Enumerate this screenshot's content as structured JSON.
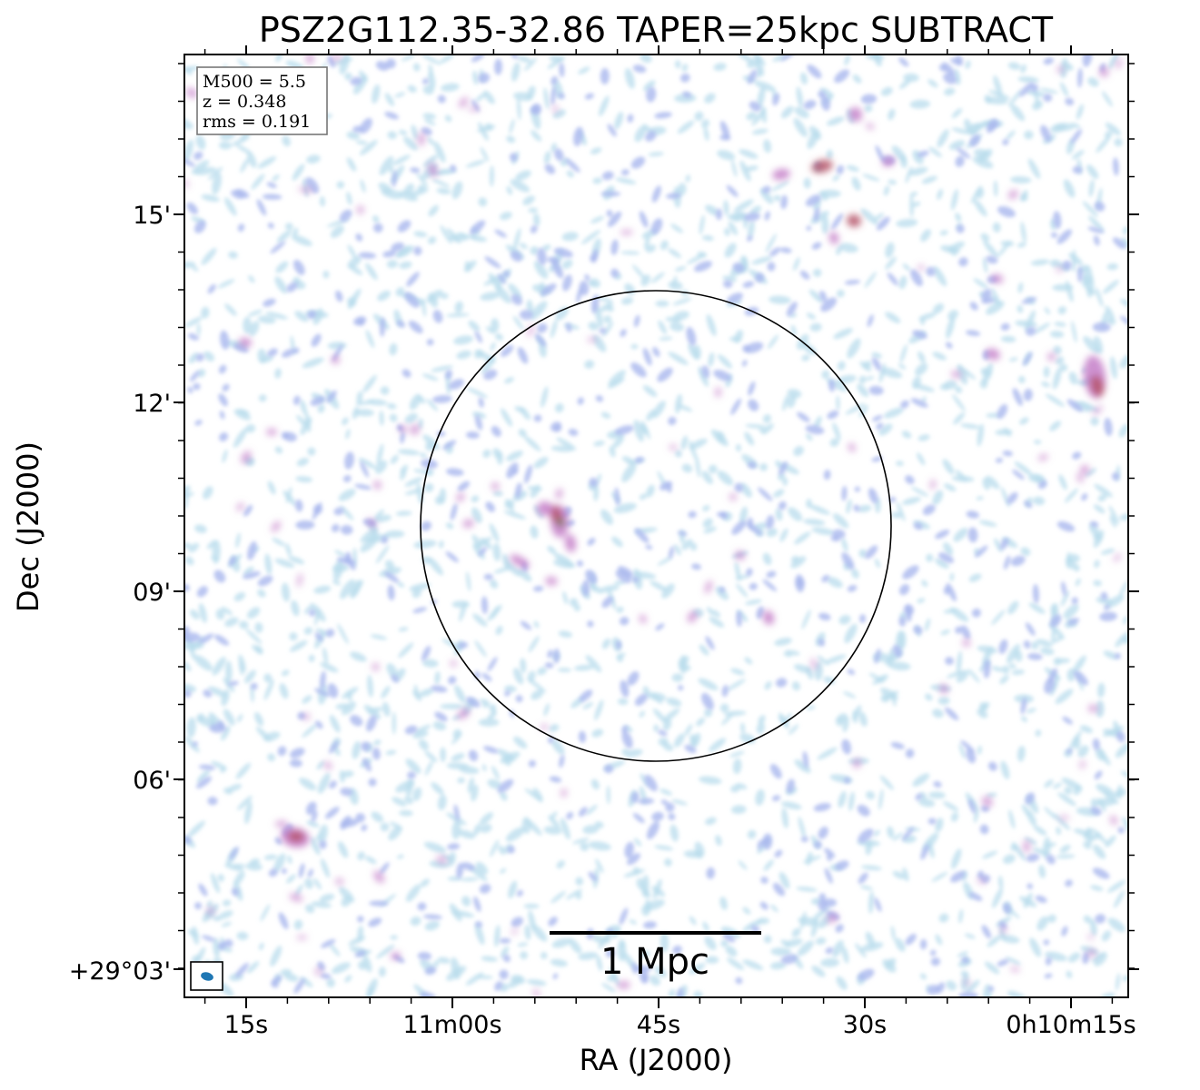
{
  "title": "PSZ2G112.35-32.86 TAPER=25kpc SUBTRACT",
  "axes": {
    "xlabel": "RA (J2000)",
    "ylabel": "Dec (J2000)",
    "x_ticks": [
      "15s",
      "11m00s",
      "45s",
      "30s",
      "0h10m15s"
    ],
    "y_ticks": [
      "15'",
      "12'",
      "09'",
      "06'",
      "+29°03'"
    ]
  },
  "info_box": {
    "mass": "M500 = 5.5",
    "redshift": "z = 0.348",
    "rms": "rms = 0.191"
  },
  "scale_bar": {
    "label": "1 Mpc"
  },
  "colors": {
    "faint": "#b8dcec",
    "mid": "#a9b8ee",
    "bright": "#c47ec8",
    "peak": "#b5556a",
    "core": "#6b7a3a",
    "beam": "#1f77b4"
  }
}
